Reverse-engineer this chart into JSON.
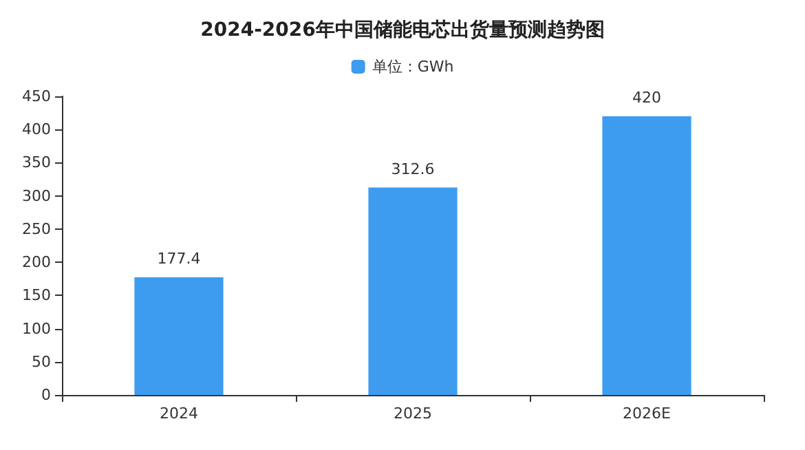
{
  "chart_data": {
    "type": "bar",
    "title": "2024-2026年中国储能电芯出货量预测趋势图",
    "categories": [
      "2024",
      "2025",
      "2026E"
    ],
    "series": [
      {
        "name": "单位：GWh",
        "color": "#3d9cf0",
        "values": [
          177.4,
          312.6,
          420
        ]
      }
    ],
    "ylim": [
      0,
      450
    ],
    "yticks": [
      0,
      50,
      100,
      150,
      200,
      250,
      300,
      350,
      400,
      450
    ],
    "grid": false,
    "legend": "top",
    "data_labels": true
  }
}
